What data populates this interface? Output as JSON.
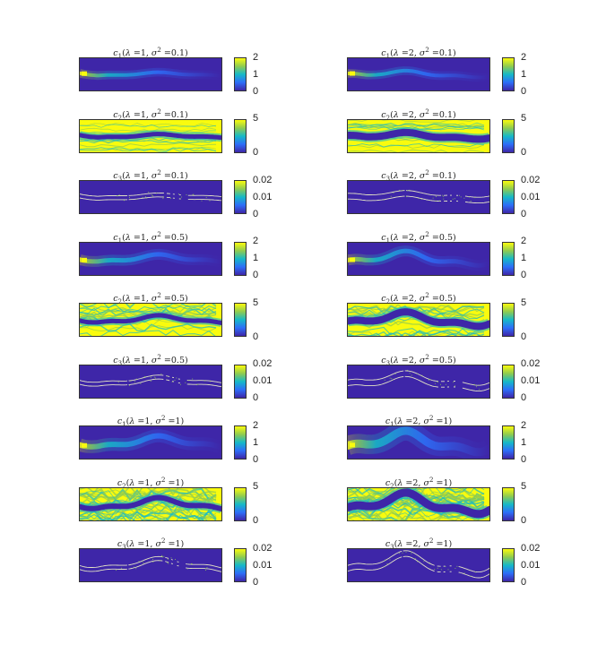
{
  "chart_data": [
    {
      "type": "heatmap",
      "field": "c1",
      "lambda": "1",
      "sigma2": "0.1",
      "colorbar_ticks": [
        "2",
        "1",
        "0"
      ],
      "clim": [
        0,
        2
      ]
    },
    {
      "type": "heatmap",
      "field": "c1",
      "lambda": "2",
      "sigma2": "0.1",
      "colorbar_ticks": [
        "2",
        "1",
        "0"
      ],
      "clim": [
        0,
        2
      ]
    },
    {
      "type": "heatmap",
      "field": "c2",
      "lambda": "1",
      "sigma2": "0.1",
      "colorbar_ticks": [
        "5",
        "0"
      ],
      "clim": [
        0,
        5
      ]
    },
    {
      "type": "heatmap",
      "field": "c2",
      "lambda": "2",
      "sigma2": "0.1",
      "colorbar_ticks": [
        "5",
        "0"
      ],
      "clim": [
        0,
        5
      ]
    },
    {
      "type": "heatmap",
      "field": "c3",
      "lambda": "1",
      "sigma2": "0.1",
      "colorbar_ticks": [
        "0.02",
        "0.01",
        "0"
      ],
      "clim": [
        0,
        0.02
      ]
    },
    {
      "type": "heatmap",
      "field": "c3",
      "lambda": "2",
      "sigma2": "0.1",
      "colorbar_ticks": [
        "0.02",
        "0.01",
        "0"
      ],
      "clim": [
        0,
        0.02
      ]
    },
    {
      "type": "heatmap",
      "field": "c1",
      "lambda": "1",
      "sigma2": "0.5",
      "colorbar_ticks": [
        "2",
        "1",
        "0"
      ],
      "clim": [
        0,
        2
      ]
    },
    {
      "type": "heatmap",
      "field": "c1",
      "lambda": "2",
      "sigma2": "0.5",
      "colorbar_ticks": [
        "2",
        "1",
        "0"
      ],
      "clim": [
        0,
        2
      ]
    },
    {
      "type": "heatmap",
      "field": "c2",
      "lambda": "1",
      "sigma2": "0.5",
      "colorbar_ticks": [
        "5",
        "0"
      ],
      "clim": [
        0,
        5
      ]
    },
    {
      "type": "heatmap",
      "field": "c2",
      "lambda": "2",
      "sigma2": "0.5",
      "colorbar_ticks": [
        "5",
        "0"
      ],
      "clim": [
        0,
        5
      ]
    },
    {
      "type": "heatmap",
      "field": "c3",
      "lambda": "1",
      "sigma2": "0.5",
      "colorbar_ticks": [
        "0.02",
        "0.01",
        "0"
      ],
      "clim": [
        0,
        0.02
      ]
    },
    {
      "type": "heatmap",
      "field": "c3",
      "lambda": "2",
      "sigma2": "0.5",
      "colorbar_ticks": [
        "0.02",
        "0.01",
        "0"
      ],
      "clim": [
        0,
        0.02
      ]
    },
    {
      "type": "heatmap",
      "field": "c1",
      "lambda": "1",
      "sigma2": "1",
      "colorbar_ticks": [
        "2",
        "1",
        "0"
      ],
      "clim": [
        0,
        2
      ]
    },
    {
      "type": "heatmap",
      "field": "c1",
      "lambda": "2",
      "sigma2": "1",
      "colorbar_ticks": [
        "2",
        "1",
        "0"
      ],
      "clim": [
        0,
        2
      ]
    },
    {
      "type": "heatmap",
      "field": "c2",
      "lambda": "1",
      "sigma2": "1",
      "colorbar_ticks": [
        "5",
        "0"
      ],
      "clim": [
        0,
        5
      ]
    },
    {
      "type": "heatmap",
      "field": "c2",
      "lambda": "2",
      "sigma2": "1",
      "colorbar_ticks": [
        "5",
        "0"
      ],
      "clim": [
        0,
        5
      ]
    },
    {
      "type": "heatmap",
      "field": "c3",
      "lambda": "1",
      "sigma2": "1",
      "colorbar_ticks": [
        "0.02",
        "0.01",
        "0"
      ],
      "clim": [
        0,
        0.02
      ]
    },
    {
      "type": "heatmap",
      "field": "c3",
      "lambda": "2",
      "sigma2": "1",
      "colorbar_ticks": [
        "0.02",
        "0.01",
        "0"
      ],
      "clim": [
        0,
        0.02
      ]
    }
  ],
  "colormap": {
    "name": "parula",
    "stops": [
      "#3e26a8",
      "#2d6ef8",
      "#16b9c7",
      "#8fcb50",
      "#f9fb0e"
    ]
  }
}
